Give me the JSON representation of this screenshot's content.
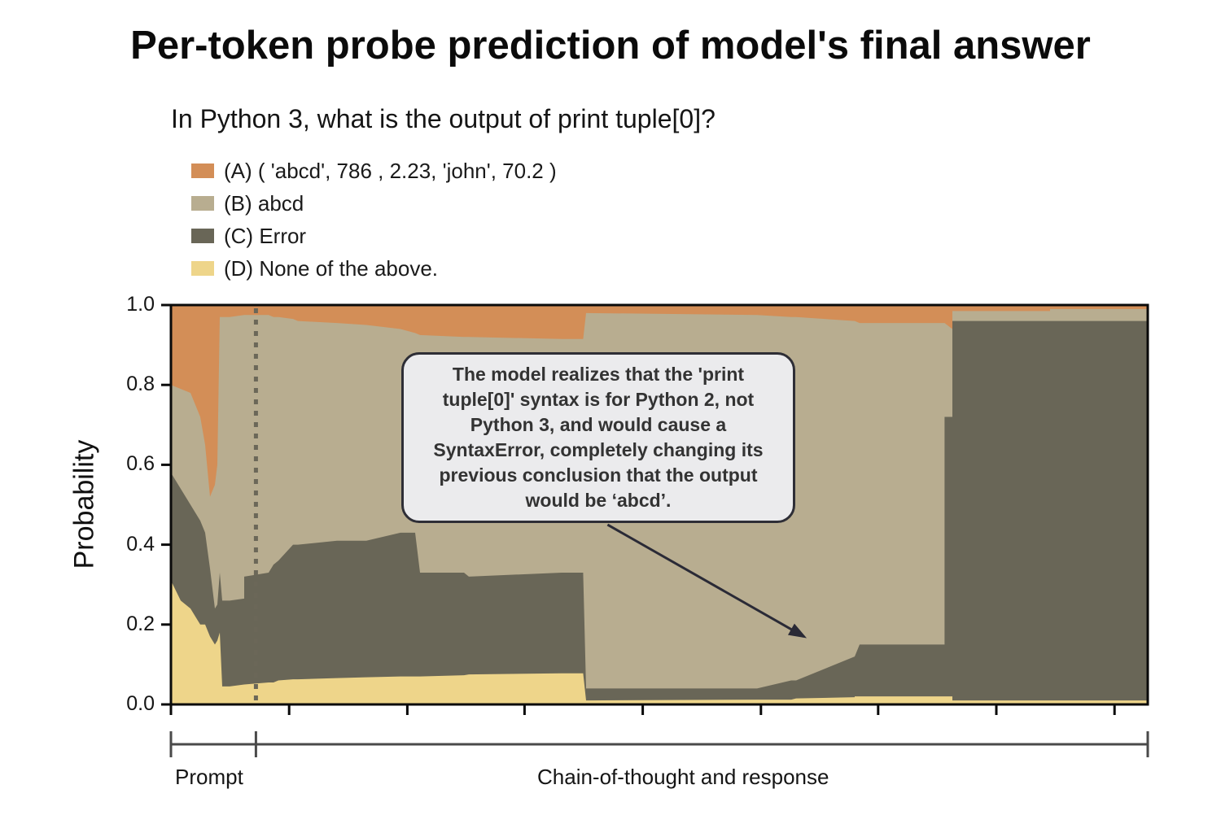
{
  "title": "Per-token probe prediction of model's final answer",
  "question": "In Python 3, what is the output of print tuple[0]?",
  "legend": [
    {
      "key": "A",
      "label": "(A) ( 'abcd', 786 , 2.23, 'john', 70.2 )",
      "color": "#d38e57"
    },
    {
      "key": "B",
      "label": "(B) abcd",
      "color": "#b8ad90"
    },
    {
      "key": "C",
      "label": "(C) Error",
      "color": "#696657"
    },
    {
      "key": "D",
      "label": "(D) None of the above.",
      "color": "#eed58a"
    }
  ],
  "annotation": {
    "text": "The model realizes that the 'print tuple[0]' syntax is for Python 2, not Python 3, and would cause a SyntaxError, completely changing its previous conclusion that the output would be ‘abcd’.",
    "arrow_from": [
      0.447,
      0.45
    ],
    "arrow_to": [
      0.648,
      0.17
    ]
  },
  "brackets": {
    "prompt_label": "Prompt",
    "cot_label": "Chain-of-thought and response",
    "prompt_end": 0.087
  },
  "chart_data": {
    "type": "area",
    "stacked": true,
    "title": "Per-token probe prediction of model's final answer",
    "subtitle": "In Python 3, what is the output of print tuple[0]?",
    "xlabel": "",
    "ylabel": "Probability",
    "ylim": [
      0.0,
      1.0
    ],
    "yticks": [
      "0.0",
      "0.2",
      "0.4",
      "0.6",
      "0.8",
      "1.0"
    ],
    "xtick_positions": [
      0.0,
      0.121,
      0.242,
      0.362,
      0.483,
      0.604,
      0.724,
      0.845,
      0.966
    ],
    "xtick_labels": [
      "",
      "",
      "",
      "",
      "",
      "",
      "",
      "",
      ""
    ],
    "prompt_boundary_x": 0.087,
    "grid": false,
    "legend_position": "top-left",
    "x": [
      0.0,
      0.01,
      0.02,
      0.03,
      0.035,
      0.04,
      0.045,
      0.0475,
      0.05,
      0.0525,
      0.06,
      0.075,
      0.075,
      0.1,
      0.105,
      0.11,
      0.125,
      0.13,
      0.17,
      0.2,
      0.235,
      0.25,
      0.255,
      0.3,
      0.305,
      0.4,
      0.422,
      0.425,
      0.6,
      0.635,
      0.64,
      0.7,
      0.7,
      0.705,
      0.792,
      0.792,
      0.8,
      0.8,
      0.9,
      0.9,
      0.95,
      1.0
    ],
    "series": [
      {
        "name": "(D) None of the above.",
        "color": "#eed58a",
        "values": [
          0.31,
          0.26,
          0.24,
          0.2,
          0.2,
          0.17,
          0.15,
          0.16,
          0.18,
          0.045,
          0.045,
          0.05,
          0.05,
          0.055,
          0.055,
          0.06,
          0.063,
          0.063,
          0.066,
          0.068,
          0.07,
          0.07,
          0.07,
          0.073,
          0.075,
          0.078,
          0.078,
          0.01,
          0.012,
          0.012,
          0.015,
          0.018,
          0.02,
          0.02,
          0.02,
          0.02,
          0.02,
          0.01,
          0.01,
          0.01,
          0.01,
          0.01
        ]
      },
      {
        "name": "(C) Error",
        "color": "#696657",
        "values": [
          0.58,
          0.54,
          0.5,
          0.46,
          0.43,
          0.34,
          0.24,
          0.25,
          0.33,
          0.26,
          0.26,
          0.265,
          0.32,
          0.33,
          0.35,
          0.36,
          0.4,
          0.4,
          0.41,
          0.41,
          0.43,
          0.43,
          0.33,
          0.33,
          0.32,
          0.33,
          0.33,
          0.04,
          0.04,
          0.06,
          0.06,
          0.12,
          0.12,
          0.15,
          0.15,
          0.72,
          0.72,
          0.96,
          0.96,
          0.96,
          0.96,
          0.96
        ]
      },
      {
        "name": "(B) abcd",
        "color": "#b8ad90",
        "values": [
          0.8,
          0.79,
          0.78,
          0.72,
          0.65,
          0.52,
          0.55,
          0.6,
          0.97,
          0.97,
          0.97,
          0.975,
          0.975,
          0.975,
          0.97,
          0.97,
          0.965,
          0.96,
          0.955,
          0.95,
          0.94,
          0.93,
          0.925,
          0.92,
          0.92,
          0.915,
          0.915,
          0.98,
          0.975,
          0.97,
          0.97,
          0.96,
          0.96,
          0.955,
          0.955,
          0.955,
          0.94,
          0.985,
          0.985,
          0.99,
          0.99,
          0.99
        ]
      },
      {
        "name": "(A) ( 'abcd', 786 , 2.23, 'john', 70.2 )",
        "color": "#d38e57",
        "values": [
          1.0,
          1.0,
          1.0,
          1.0,
          1.0,
          1.0,
          1.0,
          1.0,
          1.0,
          1.0,
          1.0,
          1.0,
          1.0,
          1.0,
          1.0,
          1.0,
          1.0,
          1.0,
          1.0,
          1.0,
          1.0,
          1.0,
          1.0,
          1.0,
          1.0,
          1.0,
          1.0,
          1.0,
          1.0,
          1.0,
          1.0,
          1.0,
          1.0,
          1.0,
          1.0,
          1.0,
          1.0,
          1.0,
          1.0,
          1.0,
          1.0,
          1.0
        ]
      }
    ],
    "values_note": "series values are cumulative upper boundaries of each stacked band"
  }
}
